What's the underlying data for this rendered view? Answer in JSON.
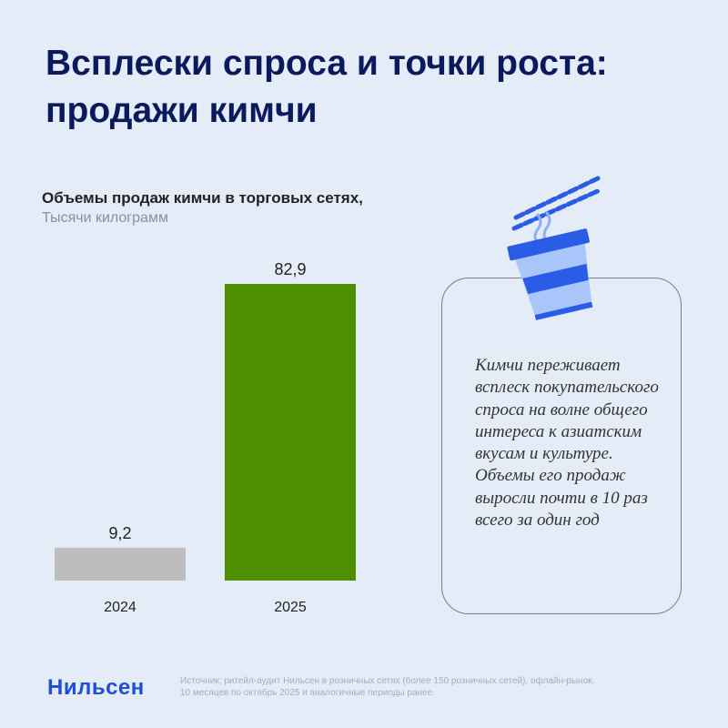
{
  "title": "Всплески спроса и точки роста: продажи кимчи",
  "chart_heading": "Объемы продаж кимчи в торговых сетях,",
  "chart_unit": "Тысячи килограмм",
  "callout_text": "Кимчи переживает всплеск покупательского спроса на волне общего интереса к азиатским вкусам и культуре. Объемы его продаж выросли почти в 10 раз всего за один год",
  "logo": "Нильсен",
  "source_line1": "Источник: ритейл-аудит Нильсен в розничных сетях (более 150 розничных сетей), офлайн-рынок.",
  "source_line2": "10 месяцев по октябрь 2025 и аналогичные периоды ранее.",
  "icons": [
    "chopsticks-icon",
    "noodle-cup-icon"
  ],
  "colors": {
    "bar_2024": "#bdbdbd",
    "bar_2025": "#4e8f00",
    "title": "#0a1a5c",
    "brand": "#1d4fd8",
    "background": "#e4ecf8"
  },
  "chart_data": {
    "type": "bar",
    "categories": [
      "2024",
      "2025"
    ],
    "values": [
      9.2,
      82.9
    ],
    "value_labels": [
      "9,2",
      "82,9"
    ],
    "title": "Объемы продаж кимчи в торговых сетях,",
    "ylabel": "Тысячи килограмм",
    "ylim": [
      0,
      82.9
    ],
    "grid": false,
    "legend": "none"
  }
}
